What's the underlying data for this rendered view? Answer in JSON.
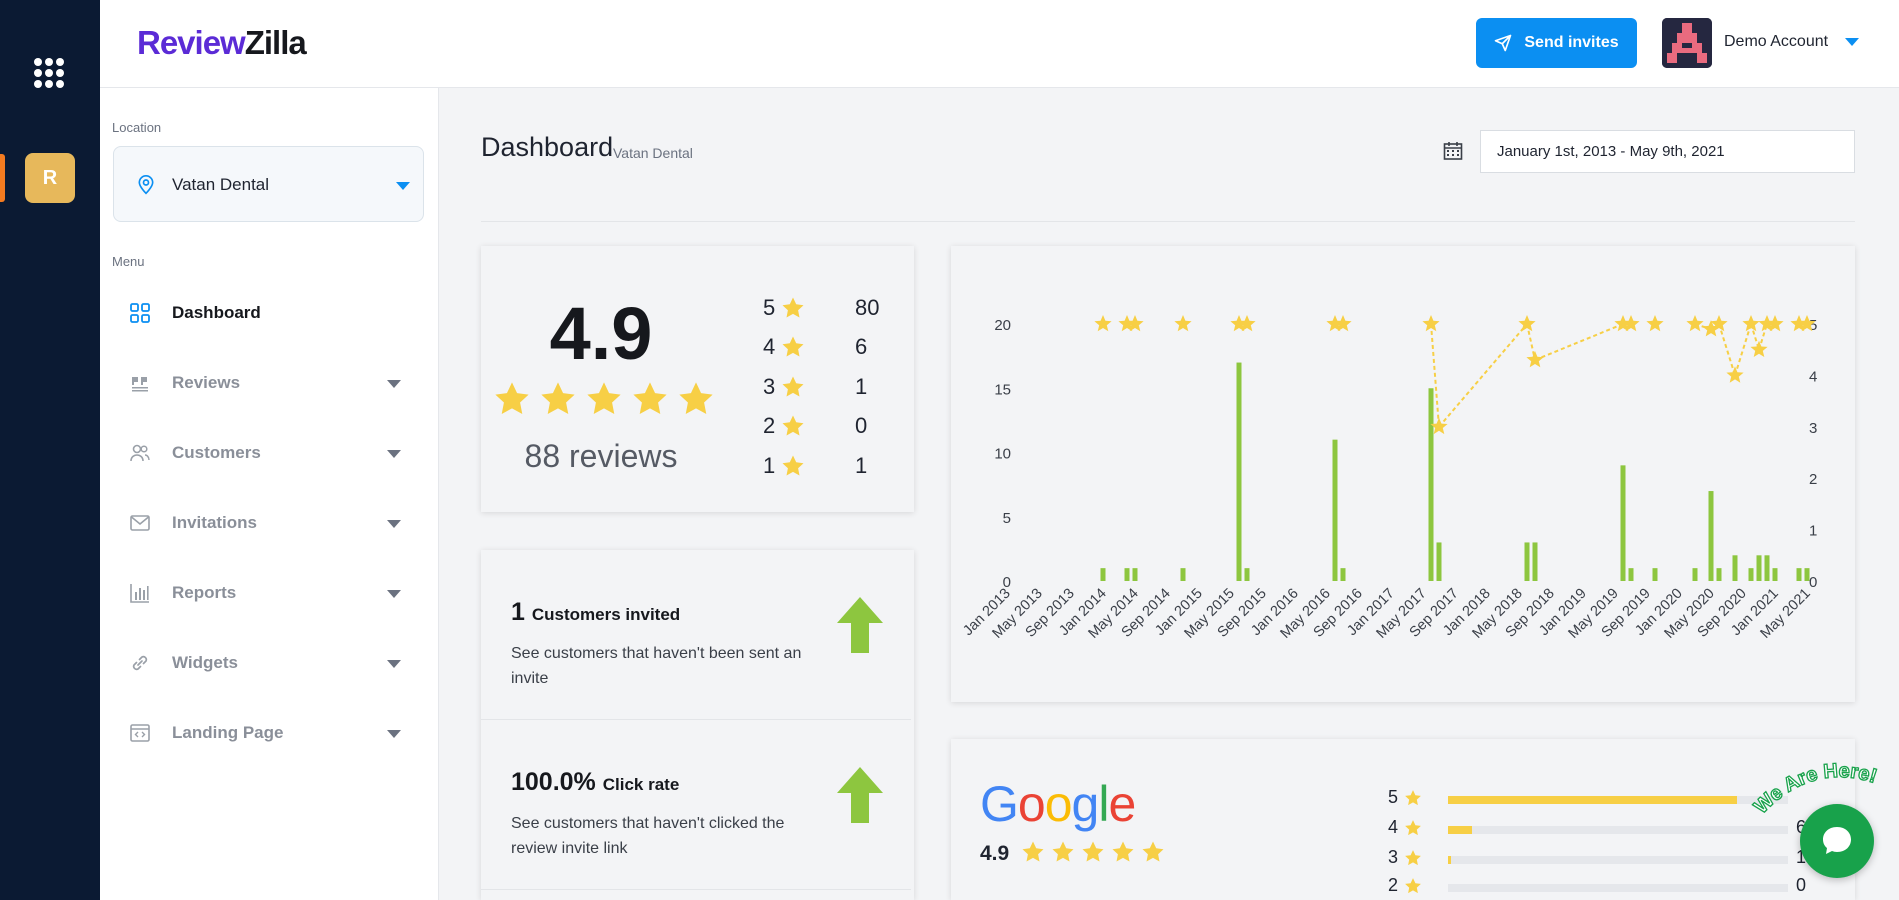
{
  "app": {
    "logo_part1": "Review",
    "logo_part2": "Zilla"
  },
  "rail": {
    "location_initial": "R"
  },
  "header": {
    "send_invites_label": "Send invites",
    "account_name": "Demo Account"
  },
  "sidebar": {
    "location_label": "Location",
    "location_value": "Vatan Dental",
    "menu_label": "Menu",
    "items": [
      {
        "label": "Dashboard",
        "icon": "dashboard-grid-icon",
        "active": true
      },
      {
        "label": "Reviews",
        "icon": "quote-icon",
        "active": false
      },
      {
        "label": "Customers",
        "icon": "users-icon",
        "active": false
      },
      {
        "label": "Invitations",
        "icon": "envelope-icon",
        "active": false
      },
      {
        "label": "Reports",
        "icon": "bar-chart-icon",
        "active": false
      },
      {
        "label": "Widgets",
        "icon": "link-icon",
        "active": false
      },
      {
        "label": "Landing Page",
        "icon": "code-window-icon",
        "active": false
      }
    ]
  },
  "page": {
    "title": "Dashboard",
    "subtitle": "Vatan Dental",
    "date_range": "January 1st, 2013 - May 9th, 2021"
  },
  "summary": {
    "rating": "4.9",
    "reviews": "88 reviews",
    "distribution": [
      {
        "stars": "5",
        "count": "80"
      },
      {
        "stars": "4",
        "count": "6"
      },
      {
        "stars": "3",
        "count": "1"
      },
      {
        "stars": "2",
        "count": "0"
      },
      {
        "stars": "1",
        "count": "1"
      }
    ]
  },
  "stats": [
    {
      "value": "1",
      "label": "Customers invited",
      "desc": "See customers that haven't been sent an invite"
    },
    {
      "value": "100.0%",
      "label": "Click rate",
      "desc": "See customers that haven't clicked the review invite link"
    }
  ],
  "colors": {
    "accent": "#0b8ff2",
    "bar": "#8dc63f",
    "star": "#f7cf45",
    "rail": "#0b1a33"
  },
  "chart_data": {
    "type": "bar",
    "title": "",
    "x_tick_labels": [
      "Jan 2013",
      "May 2013",
      "Sep 2013",
      "Jan 2014",
      "May 2014",
      "Sep 2014",
      "Jan 2015",
      "May 2015",
      "Sep 2015",
      "Jan 2016",
      "May 2016",
      "Sep 2016",
      "Jan 2017",
      "May 2017",
      "Sep 2017",
      "Jan 2018",
      "May 2018",
      "Sep 2018",
      "Jan 2019",
      "May 2019",
      "Sep 2019",
      "Jan 2020",
      "May 2020",
      "Sep 2020",
      "Jan 2021",
      "May 2021"
    ],
    "ylim_left": [
      0,
      20
    ],
    "yticks_left": [
      0,
      5,
      10,
      15,
      20
    ],
    "ylim_right": [
      0,
      5
    ],
    "yticks_right": [
      0,
      1,
      2,
      3,
      4,
      5
    ],
    "bars": [
      {
        "x": "2014-01",
        "value": 1
      },
      {
        "x": "2014-04",
        "value": 1
      },
      {
        "x": "2014-05",
        "value": 1
      },
      {
        "x": "2014-11",
        "value": 1
      },
      {
        "x": "2015-06",
        "value": 17
      },
      {
        "x": "2015-07",
        "value": 1
      },
      {
        "x": "2016-06",
        "value": 11
      },
      {
        "x": "2016-07",
        "value": 1
      },
      {
        "x": "2017-06",
        "value": 15
      },
      {
        "x": "2017-07",
        "value": 3
      },
      {
        "x": "2018-06",
        "value": 3
      },
      {
        "x": "2018-07",
        "value": 3
      },
      {
        "x": "2019-06",
        "value": 9
      },
      {
        "x": "2019-07",
        "value": 1
      },
      {
        "x": "2019-10",
        "value": 1
      },
      {
        "x": "2020-03",
        "value": 1
      },
      {
        "x": "2020-05",
        "value": 7
      },
      {
        "x": "2020-06",
        "value": 1
      },
      {
        "x": "2020-08",
        "value": 2
      },
      {
        "x": "2020-10",
        "value": 1
      },
      {
        "x": "2020-11",
        "value": 2
      },
      {
        "x": "2020-12",
        "value": 2
      },
      {
        "x": "2021-01",
        "value": 1
      },
      {
        "x": "2021-04",
        "value": 1
      },
      {
        "x": "2021-05",
        "value": 1
      }
    ],
    "stars": [
      {
        "x": "2014-01",
        "value": 5
      },
      {
        "x": "2014-04",
        "value": 5
      },
      {
        "x": "2014-05",
        "value": 5
      },
      {
        "x": "2014-11",
        "value": 5
      },
      {
        "x": "2015-06",
        "value": 5
      },
      {
        "x": "2015-07",
        "value": 5
      },
      {
        "x": "2016-06",
        "value": 5
      },
      {
        "x": "2016-07",
        "value": 5
      },
      {
        "x": "2017-06",
        "value": 5
      },
      {
        "x": "2017-07",
        "value": 3
      },
      {
        "x": "2018-06",
        "value": 5
      },
      {
        "x": "2018-07",
        "value": 4.3
      },
      {
        "x": "2019-06",
        "value": 5
      },
      {
        "x": "2019-07",
        "value": 5
      },
      {
        "x": "2019-10",
        "value": 5
      },
      {
        "x": "2020-03",
        "value": 5
      },
      {
        "x": "2020-05",
        "value": 4.9
      },
      {
        "x": "2020-06",
        "value": 5
      },
      {
        "x": "2020-08",
        "value": 4
      },
      {
        "x": "2020-10",
        "value": 5
      },
      {
        "x": "2020-11",
        "value": 4.5
      },
      {
        "x": "2020-12",
        "value": 5
      },
      {
        "x": "2021-01",
        "value": 5
      },
      {
        "x": "2021-04",
        "value": 5
      },
      {
        "x": "2021-05",
        "value": 5
      }
    ]
  },
  "google": {
    "rating": "4.9",
    "bars": [
      {
        "stars": "5",
        "count": "",
        "fraction": 0.85
      },
      {
        "stars": "4",
        "count": "6",
        "fraction": 0.07
      },
      {
        "stars": "3",
        "count": "1",
        "fraction": 0.01
      },
      {
        "stars": "2",
        "count": "0",
        "fraction": 0
      }
    ]
  },
  "chat": {
    "badge_text": "We Are Here!"
  }
}
